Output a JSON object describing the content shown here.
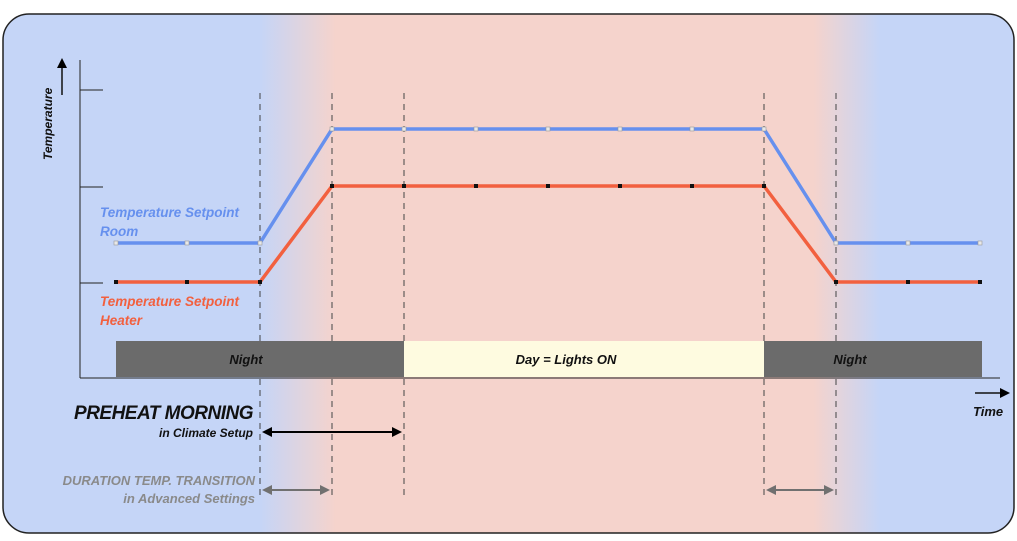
{
  "colors": {
    "night_bg": "#c5d5f7",
    "day_bg": "#f5d3cc",
    "room_line": "#6690ee",
    "heater_line": "#f2603f",
    "night_bar": "#6b6b6b",
    "day_bar": "#fefbe0",
    "gray_text": "#8a8a8a"
  },
  "axes": {
    "y_label": "Temperature",
    "x_label": "Time"
  },
  "series": {
    "room": {
      "label_line1": "Temperature Setpoint",
      "label_line2": "Room"
    },
    "heater": {
      "label_line1": "Temperature Setpoint",
      "label_line2": "Heater"
    }
  },
  "bars": {
    "night1": "Night",
    "day": "Day = Lights ON",
    "night2": "Night"
  },
  "annotations": {
    "preheat_title": "PREHEAT MORNING",
    "preheat_sub": "in Climate Setup",
    "duration_title": "DURATION TEMP. TRANSITION",
    "duration_sub": "in Advanced Settings"
  }
}
